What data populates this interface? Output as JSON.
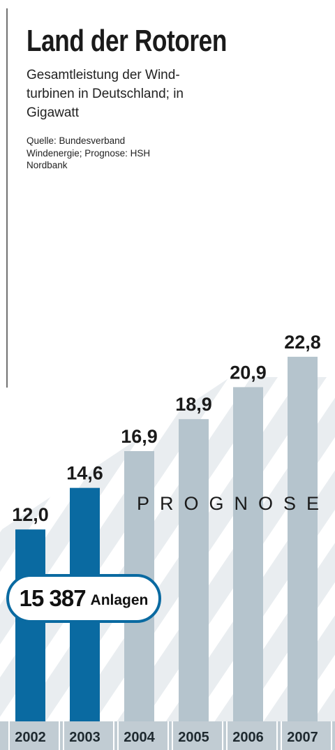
{
  "header": {
    "title": "Land der Rotoren",
    "subtitle": "Gesamtleistung der Wind-turbinen in Deutschland; in Gigawatt",
    "source": "Quelle: Bundesverband Windenergie; Prognose: HSH Nordbank"
  },
  "annotation": {
    "forecast_label": "PROGNOSE",
    "installations_count": "15 387",
    "installations_unit": "Anlagen"
  },
  "chart_data": {
    "type": "bar",
    "title": "Land der Rotoren",
    "subtitle": "Gesamtleistung der Wind-turbinen in Deutschland; in Gigawatt",
    "source": "Quelle: Bundesverband Windenergie; Prognose: HSH Nordbank",
    "xlabel": "",
    "ylabel": "",
    "unit": "Gigawatt",
    "categories": [
      "2002",
      "2003",
      "2004",
      "2005",
      "2006",
      "2007"
    ],
    "values": [
      12.0,
      14.6,
      16.9,
      18.9,
      20.9,
      22.8
    ],
    "value_labels": [
      "12,0",
      "14,6",
      "16,9",
      "18,9",
      "20,9",
      "22,8"
    ],
    "forecast": [
      false,
      false,
      true,
      true,
      true,
      true
    ],
    "grid": false,
    "legend": false
  },
  "colors": {
    "actual": "#0a6aa1",
    "forecast": "#b5c4cd",
    "stripes": "#e9edf0",
    "year_band": "#c1ccd3",
    "text": "#1a1a1a"
  }
}
